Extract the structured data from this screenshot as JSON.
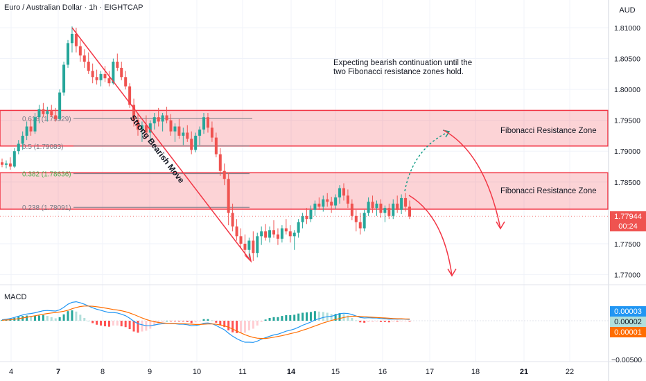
{
  "header": {
    "title": "Euro / Australian Dollar · 1h · EIGHTCAP",
    "currency": "AUD"
  },
  "annotations": {
    "bias_note_line1": "Expecting bearish continuation until the",
    "bias_note_line2": "two Fibonacci resistance zones hold.",
    "zone_upper_label": "Fibonacci Resistance Zone",
    "zone_lower_label": "Fibonacci Resistance Zone",
    "trend_label": "Strong Bearish Move"
  },
  "fib_levels": [
    {
      "label": "0.618 (1.79529)",
      "value": 1.79529
    },
    {
      "label": "0.5 (1.79083)",
      "value": 1.79083
    },
    {
      "label": "0.382 (1.78636)",
      "value": 1.78636
    },
    {
      "label": "0.238 (1.78091)",
      "value": 1.78091
    }
  ],
  "price_tags": {
    "last_price": "1.77944",
    "countdown": "00:24",
    "macd_blue": "0.00003",
    "macd_hist": "0.00002",
    "macd_orange": "0.00001"
  },
  "macd_pane": {
    "title": "MACD",
    "bottom_tick": "−0.00500"
  },
  "colors": {
    "bull": "#26a69a",
    "bear": "#ef5350",
    "zone_fill": "rgba(242, 54, 69, 0.22)",
    "zone_border": "#f23645",
    "macd_line": "#2196f3",
    "signal_line": "#ff6d00",
    "last_price_tag": "#ef5350",
    "countdown_tag": "#ef5350",
    "macd_tag": "#2196f3",
    "hist_tag": "#b2dfdb",
    "signal_tag": "#ff6d00"
  },
  "chart_data": {
    "type": "candlestick",
    "title": "Euro / Australian Dollar · 1h · EIGHTCAP",
    "x_ticks": [
      "4",
      "7",
      "8",
      "9",
      "10",
      "11",
      "14",
      "15",
      "16",
      "17",
      "18",
      "21",
      "22"
    ],
    "y_ticks": [
      "1.81000",
      "1.80500",
      "1.80000",
      "1.79500",
      "1.79000",
      "1.78500",
      "1.77500",
      "1.77000"
    ],
    "y_range": [
      1.768,
      1.8135
    ],
    "last_price": 1.77944,
    "zones": [
      {
        "name": "Fibonacci Resistance Zone",
        "low": 1.79083,
        "high": 1.7966
      },
      {
        "name": "Fibonacci Resistance Zone",
        "low": 1.7806,
        "high": 1.7865
      }
    ],
    "candles": [
      {
        "o": 1.7882,
        "h": 1.7888,
        "l": 1.7874,
        "c": 1.7878
      },
      {
        "o": 1.7878,
        "h": 1.7885,
        "l": 1.7872,
        "c": 1.788
      },
      {
        "o": 1.788,
        "h": 1.789,
        "l": 1.787,
        "c": 1.7875
      },
      {
        "o": 1.7875,
        "h": 1.7905,
        "l": 1.7873,
        "c": 1.79
      },
      {
        "o": 1.79,
        "h": 1.7918,
        "l": 1.7895,
        "c": 1.7912
      },
      {
        "o": 1.7912,
        "h": 1.7932,
        "l": 1.7902,
        "c": 1.7925
      },
      {
        "o": 1.7925,
        "h": 1.7948,
        "l": 1.7918,
        "c": 1.794
      },
      {
        "o": 1.794,
        "h": 1.7952,
        "l": 1.7925,
        "c": 1.7932
      },
      {
        "o": 1.7932,
        "h": 1.7962,
        "l": 1.7928,
        "c": 1.7955
      },
      {
        "o": 1.7955,
        "h": 1.7975,
        "l": 1.7945,
        "c": 1.7968
      },
      {
        "o": 1.7968,
        "h": 1.7978,
        "l": 1.7955,
        "c": 1.796
      },
      {
        "o": 1.796,
        "h": 1.7972,
        "l": 1.7948,
        "c": 1.7965
      },
      {
        "o": 1.7965,
        "h": 1.7975,
        "l": 1.7955,
        "c": 1.7958
      },
      {
        "o": 1.7958,
        "h": 1.797,
        "l": 1.7948,
        "c": 1.7952
      },
      {
        "o": 1.7952,
        "h": 1.8,
        "l": 1.795,
        "c": 1.7995
      },
      {
        "o": 1.7995,
        "h": 1.8045,
        "l": 1.799,
        "c": 1.804
      },
      {
        "o": 1.804,
        "h": 1.808,
        "l": 1.8035,
        "c": 1.8075
      },
      {
        "o": 1.8075,
        "h": 1.8102,
        "l": 1.806,
        "c": 1.809
      },
      {
        "o": 1.809,
        "h": 1.81,
        "l": 1.806,
        "c": 1.807
      },
      {
        "o": 1.807,
        "h": 1.808,
        "l": 1.8045,
        "c": 1.8055
      },
      {
        "o": 1.8055,
        "h": 1.8065,
        "l": 1.8035,
        "c": 1.8045
      },
      {
        "o": 1.8045,
        "h": 1.806,
        "l": 1.8025,
        "c": 1.803
      },
      {
        "o": 1.803,
        "h": 1.8042,
        "l": 1.801,
        "c": 1.802
      },
      {
        "o": 1.802,
        "h": 1.8032,
        "l": 1.8008,
        "c": 1.8015
      },
      {
        "o": 1.8015,
        "h": 1.803,
        "l": 1.8005,
        "c": 1.8025
      },
      {
        "o": 1.8025,
        "h": 1.8038,
        "l": 1.8012,
        "c": 1.8018
      },
      {
        "o": 1.8018,
        "h": 1.803,
        "l": 1.8005,
        "c": 1.801
      },
      {
        "o": 1.801,
        "h": 1.805,
        "l": 1.8008,
        "c": 1.8045
      },
      {
        "o": 1.8045,
        "h": 1.8058,
        "l": 1.803,
        "c": 1.8035
      },
      {
        "o": 1.8035,
        "h": 1.8045,
        "l": 1.8015,
        "c": 1.802
      },
      {
        "o": 1.802,
        "h": 1.803,
        "l": 1.8,
        "c": 1.8005
      },
      {
        "o": 1.8005,
        "h": 1.801,
        "l": 1.797,
        "c": 1.7975
      },
      {
        "o": 1.7975,
        "h": 1.7985,
        "l": 1.794,
        "c": 1.795
      },
      {
        "o": 1.795,
        "h": 1.7962,
        "l": 1.7925,
        "c": 1.7935
      },
      {
        "o": 1.7935,
        "h": 1.7948,
        "l": 1.7915,
        "c": 1.7942
      },
      {
        "o": 1.7942,
        "h": 1.7958,
        "l": 1.792,
        "c": 1.793
      },
      {
        "o": 1.793,
        "h": 1.795,
        "l": 1.7915,
        "c": 1.7945
      },
      {
        "o": 1.7945,
        "h": 1.7962,
        "l": 1.7935,
        "c": 1.7955
      },
      {
        "o": 1.7955,
        "h": 1.797,
        "l": 1.794,
        "c": 1.7948
      },
      {
        "o": 1.7948,
        "h": 1.7962,
        "l": 1.7932,
        "c": 1.7958
      },
      {
        "o": 1.7958,
        "h": 1.7972,
        "l": 1.7945,
        "c": 1.795
      },
      {
        "o": 1.795,
        "h": 1.796,
        "l": 1.7925,
        "c": 1.7932
      },
      {
        "o": 1.7932,
        "h": 1.7945,
        "l": 1.7915,
        "c": 1.794
      },
      {
        "o": 1.794,
        "h": 1.7952,
        "l": 1.792,
        "c": 1.7925
      },
      {
        "o": 1.7925,
        "h": 1.7938,
        "l": 1.791,
        "c": 1.793
      },
      {
        "o": 1.793,
        "h": 1.7942,
        "l": 1.7915,
        "c": 1.792
      },
      {
        "o": 1.792,
        "h": 1.7932,
        "l": 1.7895,
        "c": 1.7902
      },
      {
        "o": 1.7902,
        "h": 1.793,
        "l": 1.7898,
        "c": 1.7925
      },
      {
        "o": 1.7925,
        "h": 1.794,
        "l": 1.791,
        "c": 1.7935
      },
      {
        "o": 1.7935,
        "h": 1.7962,
        "l": 1.7928,
        "c": 1.7955
      },
      {
        "o": 1.7955,
        "h": 1.7962,
        "l": 1.793,
        "c": 1.7938
      },
      {
        "o": 1.7938,
        "h": 1.7948,
        "l": 1.7915,
        "c": 1.7922
      },
      {
        "o": 1.7922,
        "h": 1.793,
        "l": 1.789,
        "c": 1.7895
      },
      {
        "o": 1.7895,
        "h": 1.7905,
        "l": 1.786,
        "c": 1.7868
      },
      {
        "o": 1.7868,
        "h": 1.788,
        "l": 1.7845,
        "c": 1.7855
      },
      {
        "o": 1.7855,
        "h": 1.7865,
        "l": 1.778,
        "c": 1.78
      },
      {
        "o": 1.78,
        "h": 1.7815,
        "l": 1.777,
        "c": 1.7778
      },
      {
        "o": 1.7778,
        "h": 1.779,
        "l": 1.7755,
        "c": 1.7762
      },
      {
        "o": 1.7762,
        "h": 1.7775,
        "l": 1.7742,
        "c": 1.775
      },
      {
        "o": 1.775,
        "h": 1.7765,
        "l": 1.773,
        "c": 1.774
      },
      {
        "o": 1.774,
        "h": 1.776,
        "l": 1.7725,
        "c": 1.7755
      },
      {
        "o": 1.7755,
        "h": 1.777,
        "l": 1.7722,
        "c": 1.7735
      },
      {
        "o": 1.7735,
        "h": 1.7768,
        "l": 1.7728,
        "c": 1.7762
      },
      {
        "o": 1.7762,
        "h": 1.7778,
        "l": 1.7748,
        "c": 1.777
      },
      {
        "o": 1.777,
        "h": 1.7782,
        "l": 1.7755,
        "c": 1.776
      },
      {
        "o": 1.776,
        "h": 1.7778,
        "l": 1.7752,
        "c": 1.7772
      },
      {
        "o": 1.7772,
        "h": 1.7788,
        "l": 1.776,
        "c": 1.7765
      },
      {
        "o": 1.7765,
        "h": 1.7775,
        "l": 1.7748,
        "c": 1.7758
      },
      {
        "o": 1.7758,
        "h": 1.778,
        "l": 1.7752,
        "c": 1.7775
      },
      {
        "o": 1.7775,
        "h": 1.779,
        "l": 1.7765,
        "c": 1.777
      },
      {
        "o": 1.777,
        "h": 1.778,
        "l": 1.7752,
        "c": 1.7762
      },
      {
        "o": 1.7762,
        "h": 1.7772,
        "l": 1.774,
        "c": 1.7768
      },
      {
        "o": 1.7768,
        "h": 1.779,
        "l": 1.776,
        "c": 1.7785
      },
      {
        "o": 1.7785,
        "h": 1.78,
        "l": 1.7775,
        "c": 1.7795
      },
      {
        "o": 1.7795,
        "h": 1.7808,
        "l": 1.7782,
        "c": 1.779
      },
      {
        "o": 1.779,
        "h": 1.7812,
        "l": 1.7785,
        "c": 1.7805
      },
      {
        "o": 1.7805,
        "h": 1.782,
        "l": 1.7795,
        "c": 1.7815
      },
      {
        "o": 1.7815,
        "h": 1.7825,
        "l": 1.7805,
        "c": 1.781
      },
      {
        "o": 1.781,
        "h": 1.7828,
        "l": 1.7802,
        "c": 1.7822
      },
      {
        "o": 1.7822,
        "h": 1.7832,
        "l": 1.781,
        "c": 1.7818
      },
      {
        "o": 1.7818,
        "h": 1.7826,
        "l": 1.78,
        "c": 1.7812
      },
      {
        "o": 1.7812,
        "h": 1.783,
        "l": 1.7806,
        "c": 1.7825
      },
      {
        "o": 1.7825,
        "h": 1.7845,
        "l": 1.7815,
        "c": 1.784
      },
      {
        "o": 1.784,
        "h": 1.7848,
        "l": 1.782,
        "c": 1.7828
      },
      {
        "o": 1.7828,
        "h": 1.7838,
        "l": 1.7808,
        "c": 1.7815
      },
      {
        "o": 1.7815,
        "h": 1.7822,
        "l": 1.7788,
        "c": 1.7795
      },
      {
        "o": 1.7795,
        "h": 1.7805,
        "l": 1.777,
        "c": 1.7785
      },
      {
        "o": 1.7785,
        "h": 1.78,
        "l": 1.7765,
        "c": 1.7775
      },
      {
        "o": 1.7775,
        "h": 1.7805,
        "l": 1.777,
        "c": 1.78
      },
      {
        "o": 1.78,
        "h": 1.7825,
        "l": 1.7795,
        "c": 1.7818
      },
      {
        "o": 1.7818,
        "h": 1.7828,
        "l": 1.78,
        "c": 1.7808
      },
      {
        "o": 1.7808,
        "h": 1.782,
        "l": 1.7795,
        "c": 1.7815
      },
      {
        "o": 1.7815,
        "h": 1.7822,
        "l": 1.7792,
        "c": 1.78
      },
      {
        "o": 1.78,
        "h": 1.7812,
        "l": 1.7785,
        "c": 1.7808
      },
      {
        "o": 1.7808,
        "h": 1.7815,
        "l": 1.779,
        "c": 1.7795
      },
      {
        "o": 1.7795,
        "h": 1.7822,
        "l": 1.779,
        "c": 1.7815
      },
      {
        "o": 1.7815,
        "h": 1.7828,
        "l": 1.78,
        "c": 1.7805
      },
      {
        "o": 1.7805,
        "h": 1.783,
        "l": 1.7798,
        "c": 1.7824
      },
      {
        "o": 1.7824,
        "h": 1.7832,
        "l": 1.7802,
        "c": 1.781
      },
      {
        "o": 1.781,
        "h": 1.782,
        "l": 1.779,
        "c": 1.7794
      }
    ]
  },
  "macd_data": {
    "macd": [
      0.4,
      0.6,
      0.9,
      1.3,
      1.8,
      2.3,
      2.7,
      2.9,
      3.2,
      3.6,
      4.0,
      4.1,
      4.0,
      3.9,
      4.4,
      5.4,
      6.6,
      7.4,
      7.6,
      7.2,
      6.6,
      5.9,
      5.2,
      4.6,
      4.2,
      3.7,
      3.3,
      3.3,
      3.1,
      2.6,
      2.0,
      1.0,
      -0.2,
      -1.2,
      -1.6,
      -2.0,
      -2.0,
      -1.7,
      -1.4,
      -1.2,
      -1.0,
      -1.2,
      -1.2,
      -1.4,
      -1.4,
      -1.6,
      -2.0,
      -1.9,
      -1.6,
      -1.0,
      -0.9,
      -1.2,
      -1.9,
      -2.8,
      -3.6,
      -5.0,
      -6.2,
      -7.2,
      -8.0,
      -8.6,
      -8.6,
      -8.7,
      -8.2,
      -7.4,
      -6.8,
      -6.2,
      -5.7,
      -5.4,
      -4.8,
      -4.2,
      -3.8,
      -3.3,
      -2.6,
      -1.8,
      -1.2,
      -0.5,
      0.3,
      0.8,
      1.3,
      1.6,
      1.8,
      2.2,
      2.8,
      3.0,
      2.9,
      2.5,
      1.9,
      1.3,
      1.1,
      1.2,
      1.1,
      1.1,
      0.9,
      0.8,
      0.6,
      0.7,
      0.6,
      0.7,
      0.6,
      0.5
    ],
    "signal": [
      0.2,
      0.3,
      0.4,
      0.6,
      0.8,
      1.1,
      1.4,
      1.7,
      2.0,
      2.3,
      2.6,
      2.9,
      3.1,
      3.3,
      3.5,
      3.8,
      4.2,
      4.8,
      5.3,
      5.7,
      5.9,
      5.9,
      5.8,
      5.6,
      5.4,
      5.1,
      4.8,
      4.5,
      4.3,
      4.0,
      3.6,
      3.1,
      2.5,
      1.8,
      1.1,
      0.5,
      0.0,
      -0.4,
      -0.7,
      -0.9,
      -1.0,
      -1.1,
      -1.1,
      -1.2,
      -1.2,
      -1.3,
      -1.4,
      -1.5,
      -1.5,
      -1.4,
      -1.3,
      -1.3,
      -1.4,
      -1.7,
      -2.0,
      -2.6,
      -3.3,
      -4.1,
      -4.9,
      -5.6,
      -6.2,
      -6.7,
      -7.0,
      -7.1,
      -7.1,
      -6.9,
      -6.6,
      -6.3,
      -6.0,
      -5.6,
      -5.2,
      -4.8,
      -4.4,
      -3.8,
      -3.3,
      -2.7,
      -2.1,
      -1.5,
      -0.9,
      -0.4,
      0.1,
      0.5,
      0.9,
      1.3,
      1.6,
      1.8,
      1.8,
      1.7,
      1.6,
      1.5,
      1.4,
      1.3,
      1.2,
      1.1,
      1.0,
      0.9,
      0.8,
      0.8,
      0.7,
      0.7
    ]
  }
}
